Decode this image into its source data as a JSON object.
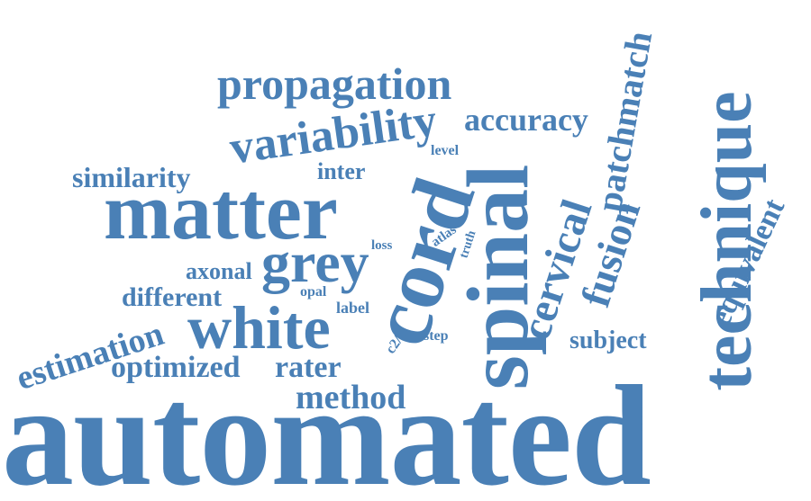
{
  "color": "#4a80b6",
  "words": {
    "automated": "automated",
    "spinal": "spinal",
    "cord": "cord",
    "technique": "technique",
    "matter": "matter",
    "white": "white",
    "grey": "grey",
    "variability": "variability",
    "propagation": "propagation",
    "patchmatch": "patchmatch",
    "cervical": "cervical",
    "fusion": "fusion",
    "accuracy": "accuracy",
    "similarity": "similarity",
    "inter": "inter",
    "level": "level",
    "equivalent": "equivalent",
    "estimation": "estimation",
    "optimized": "optimized",
    "rater": "rater",
    "method": "method",
    "different": "different",
    "axonal": "axonal",
    "subject": "subject",
    "label": "label",
    "opal": "opal",
    "loss": "loss",
    "atlas": "atlas",
    "truth": "truth",
    "step": "step",
    "c2c": "c2/c"
  }
}
